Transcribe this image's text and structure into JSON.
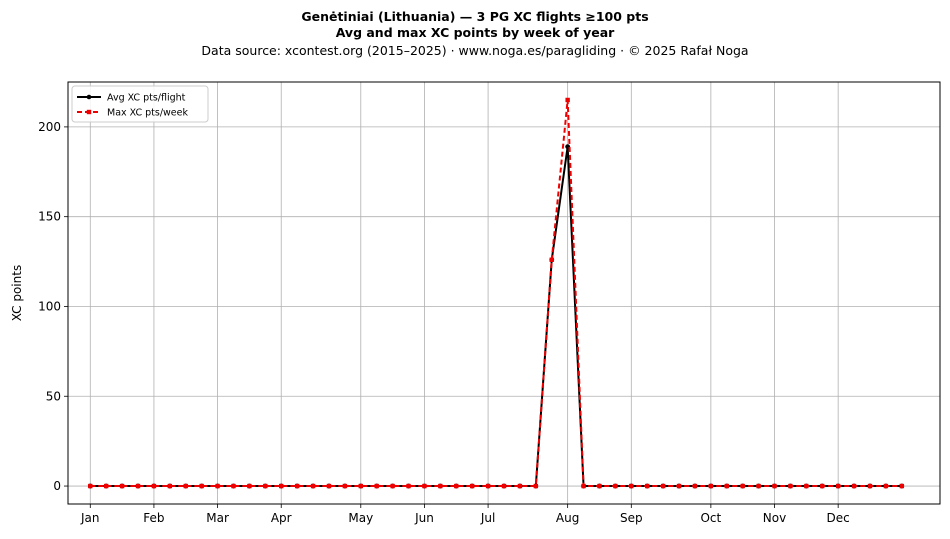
{
  "chart_data": {
    "type": "line",
    "title": "Genėtiniai (Lithuania)  —  3 PG XC flights ≥100 pts",
    "subtitle": "Avg and max XC points by week of year",
    "source_line": "Data source: xcontest.org (2015–2025)  ·  www.noga.es/paragliding  ·  © 2025 Rafał Noga",
    "xlabel": "",
    "ylabel": "XC points",
    "x_week": [
      1,
      2,
      3,
      4,
      5,
      6,
      7,
      8,
      9,
      10,
      11,
      12,
      13,
      14,
      15,
      16,
      17,
      18,
      19,
      20,
      21,
      22,
      23,
      24,
      25,
      26,
      27,
      28,
      29,
      30,
      31,
      32,
      33,
      34,
      35,
      36,
      37,
      38,
      39,
      40,
      41,
      42,
      43,
      44,
      45,
      46,
      47,
      48,
      49,
      50,
      51,
      52
    ],
    "month_ticks": [
      {
        "label": "Jan",
        "week": 1
      },
      {
        "label": "Feb",
        "week": 5
      },
      {
        "label": "Mar",
        "week": 9
      },
      {
        "label": "Apr",
        "week": 13
      },
      {
        "label": "May",
        "week": 18
      },
      {
        "label": "Jun",
        "week": 22
      },
      {
        "label": "Jul",
        "week": 26
      },
      {
        "label": "Aug",
        "week": 31
      },
      {
        "label": "Sep",
        "week": 35
      },
      {
        "label": "Oct",
        "week": 40
      },
      {
        "label": "Nov",
        "week": 44
      },
      {
        "label": "Dec",
        "week": 48
      }
    ],
    "xlim": [
      -0.4,
      54.4
    ],
    "ylim": [
      -10,
      225
    ],
    "yticks": [
      0,
      50,
      100,
      150,
      200
    ],
    "grid": true,
    "legend_position": "top-left",
    "series": [
      {
        "name": "Avg XC pts/flight",
        "color": "#000000",
        "line_style": "solid",
        "marker": "circle",
        "values": [
          0,
          0,
          0,
          0,
          0,
          0,
          0,
          0,
          0,
          0,
          0,
          0,
          0,
          0,
          0,
          0,
          0,
          0,
          0,
          0,
          0,
          0,
          0,
          0,
          0,
          0,
          0,
          0,
          0,
          126,
          189,
          0,
          0,
          0,
          0,
          0,
          0,
          0,
          0,
          0,
          0,
          0,
          0,
          0,
          0,
          0,
          0,
          0,
          0,
          0,
          0,
          0
        ]
      },
      {
        "name": "Max XC pts/week",
        "color": "#ee0000",
        "line_style": "dashed",
        "marker": "square",
        "values": [
          0,
          0,
          0,
          0,
          0,
          0,
          0,
          0,
          0,
          0,
          0,
          0,
          0,
          0,
          0,
          0,
          0,
          0,
          0,
          0,
          0,
          0,
          0,
          0,
          0,
          0,
          0,
          0,
          0,
          126,
          215,
          0,
          0,
          0,
          0,
          0,
          0,
          0,
          0,
          0,
          0,
          0,
          0,
          0,
          0,
          0,
          0,
          0,
          0,
          0,
          0,
          0
        ]
      }
    ]
  }
}
